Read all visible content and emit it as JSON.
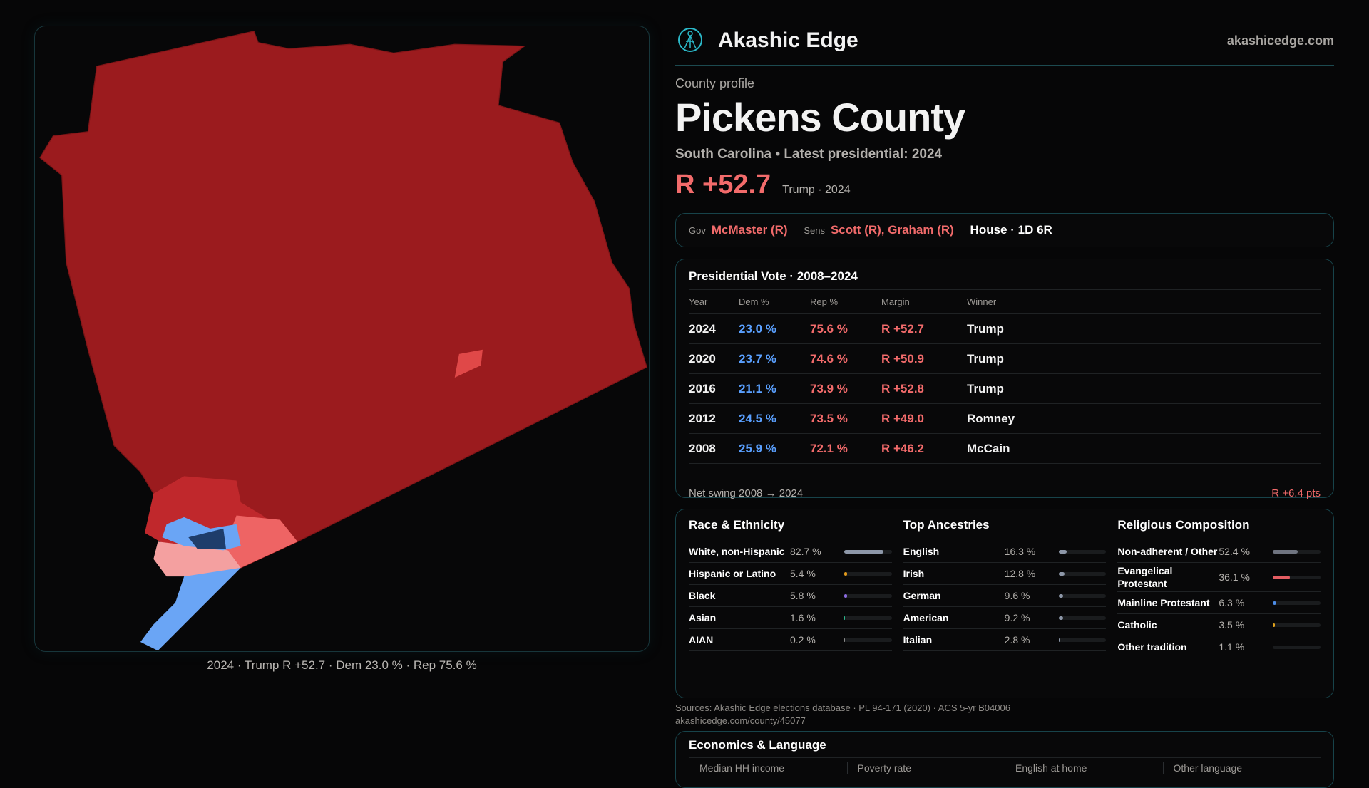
{
  "brand": {
    "name": "Akashic Edge",
    "site": "akashicedge.com",
    "logo_icon": "akashic-edge-logo-icon"
  },
  "profile": {
    "kicker": "County profile",
    "title": "Pickens County",
    "subtitle": "South Carolina • Latest presidential: 2024",
    "margin": "R +52.7",
    "margin_sub": "Trump · 2024"
  },
  "leaders": {
    "gov_label": "Gov",
    "gov": "McMaster (R)",
    "sens_label": "Sens",
    "sens": "Scott (R), Graham (R)",
    "house": "House · 1D 6R"
  },
  "presidential": {
    "title": "Presidential Vote · 2008–2024",
    "columns": [
      "Year",
      "Dem %",
      "Rep %",
      "Margin",
      "Winner"
    ],
    "rows": [
      [
        "2024",
        "23.0 %",
        "75.6 %",
        "R +52.7",
        "Trump"
      ],
      [
        "2020",
        "23.7 %",
        "74.6 %",
        "R +50.9",
        "Trump"
      ],
      [
        "2016",
        "21.1 %",
        "73.9 %",
        "R +52.8",
        "Trump"
      ],
      [
        "2012",
        "24.5 %",
        "73.5 %",
        "R +49.0",
        "Romney"
      ],
      [
        "2008",
        "25.9 %",
        "72.1 %",
        "R +46.2",
        "McCain"
      ]
    ],
    "swing_label": "Net swing 2008 → 2024",
    "swing_value": "R +6.4 pts"
  },
  "race": {
    "title": "Race & Ethnicity",
    "items": [
      {
        "name": "White, non-Hispanic",
        "pct": "82.7 %",
        "value": 82.7,
        "color": "#8d97a8"
      },
      {
        "name": "Hispanic or Latino",
        "pct": "5.4 %",
        "value": 5.4,
        "color": "#e29a1c"
      },
      {
        "name": "Black",
        "pct": "5.8 %",
        "value": 5.8,
        "color": "#8b6be0"
      },
      {
        "name": "Asian",
        "pct": "1.6 %",
        "value": 1.6,
        "color": "#2bb58a"
      },
      {
        "name": "AIAN",
        "pct": "0.2 %",
        "value": 0.2,
        "color": "#888"
      }
    ]
  },
  "ancestry": {
    "title": "Top Ancestries",
    "items": [
      {
        "name": "English",
        "pct": "16.3 %",
        "value": 16.3,
        "color": "#8d97a8"
      },
      {
        "name": "Irish",
        "pct": "12.8 %",
        "value": 12.8,
        "color": "#8d97a8"
      },
      {
        "name": "German",
        "pct": "9.6 %",
        "value": 9.6,
        "color": "#8d97a8"
      },
      {
        "name": "American",
        "pct": "9.2 %",
        "value": 9.2,
        "color": "#8d97a8"
      },
      {
        "name": "Italian",
        "pct": "2.8 %",
        "value": 2.8,
        "color": "#8d97a8"
      }
    ]
  },
  "religion": {
    "title": "Religious Composition",
    "items": [
      {
        "name": "Non-adherent / Other",
        "pct": "52.4 %",
        "value": 52.4,
        "color": "#6f7480"
      },
      {
        "name": "Evangelical Protestant",
        "pct": "36.1 %",
        "value": 36.1,
        "color": "#e35d62"
      },
      {
        "name": "Mainline Protestant",
        "pct": "6.3 %",
        "value": 6.3,
        "color": "#4d8de8"
      },
      {
        "name": "Catholic",
        "pct": "3.5 %",
        "value": 3.5,
        "color": "#e0a21c"
      },
      {
        "name": "Other tradition",
        "pct": "1.1 %",
        "value": 1.1,
        "color": "#888"
      }
    ]
  },
  "economics": {
    "title": "Economics & Language",
    "cells": [
      "Median HH income",
      "Poverty rate",
      "English at home",
      "Other language"
    ]
  },
  "sources": {
    "line1": "Sources: Akashic Edge elections database · PL 94-171 (2020) · ACS 5-yr B04006",
    "line2": "akashicedge.com/county/45077"
  },
  "map": {
    "caption": "2024 · Trump R +52.7 · Dem 23.0 % · Rep 75.6 %",
    "colors": {
      "strong_rep": "#9b1b1e",
      "lean_rep": "#c0282c",
      "light_rep": "#ee6464",
      "pale_rep": "#f4a0a0",
      "lean_dem": "#6aa5f5",
      "strong_dem": "#1e3d6b"
    }
  }
}
